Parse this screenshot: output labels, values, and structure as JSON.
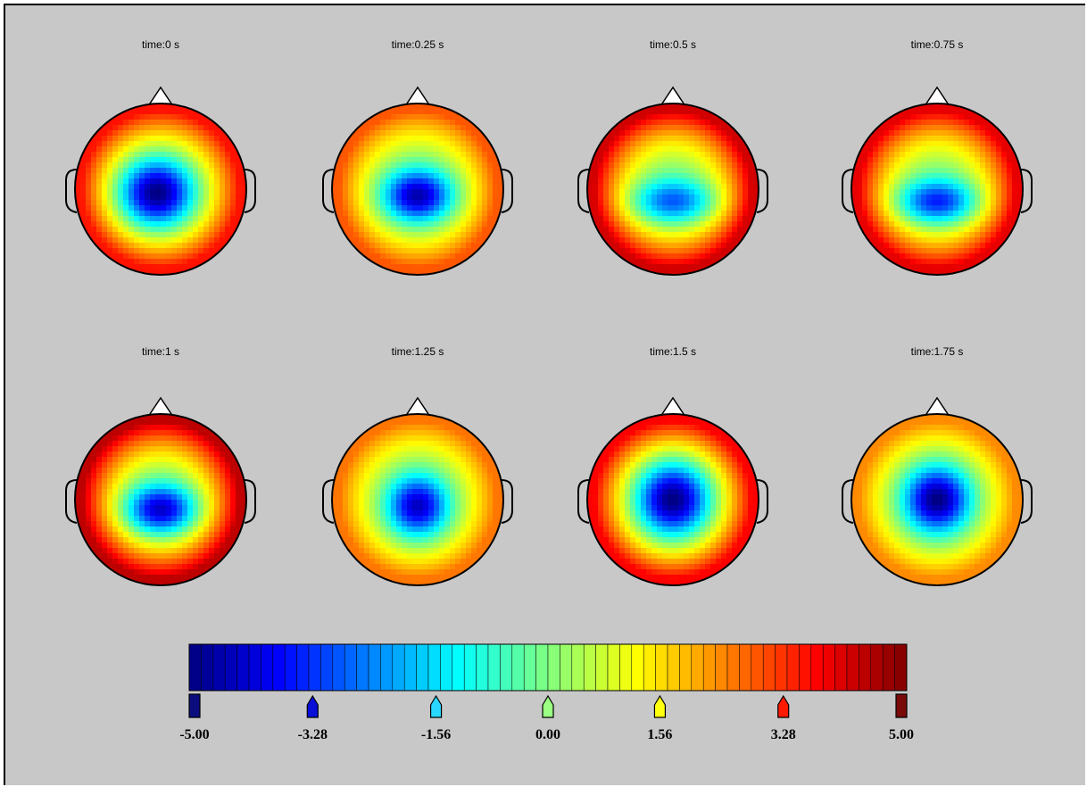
{
  "chart_data": {
    "type": "heatmap",
    "description_type": "scalp-topography",
    "panels": [
      {
        "title": "time:0 s",
        "pattern": {
          "center": [
            -0.05,
            0.05
          ],
          "spread": [
            0.42,
            0.38
          ],
          "amp": -5.0,
          "rim": 3.6
        }
      },
      {
        "title": "time:0.25 s",
        "pattern": {
          "center": [
            0.0,
            0.08
          ],
          "spread": [
            0.4,
            0.3
          ],
          "amp": -4.6,
          "rim": 2.9
        }
      },
      {
        "title": "time:0.5 s",
        "pattern": {
          "center": [
            0.0,
            0.15
          ],
          "spread": [
            0.48,
            0.25
          ],
          "amp": -3.0,
          "rim": 4.2
        }
      },
      {
        "title": "time:0.75 s",
        "pattern": {
          "center": [
            0.0,
            0.15
          ],
          "spread": [
            0.45,
            0.25
          ],
          "amp": -3.6,
          "rim": 4.0
        }
      },
      {
        "title": "time:1 s",
        "pattern": {
          "center": [
            0.0,
            0.12
          ],
          "spread": [
            0.4,
            0.28
          ],
          "amp": -4.4,
          "rim": 4.4
        }
      },
      {
        "title": "time:1.25 s",
        "pattern": {
          "center": [
            0.0,
            0.08
          ],
          "spread": [
            0.35,
            0.35
          ],
          "amp": -4.4,
          "rim": 2.6
        }
      },
      {
        "title": "time:1.5 s",
        "pattern": {
          "center": [
            0.0,
            0.0
          ],
          "spread": [
            0.42,
            0.42
          ],
          "amp": -5.0,
          "rim": 3.8
        }
      },
      {
        "title": "time:1.75 s",
        "pattern": {
          "center": [
            0.0,
            0.0
          ],
          "spread": [
            0.38,
            0.38
          ],
          "amp": -5.0,
          "rim": 2.4
        }
      }
    ],
    "colorbar": {
      "colormap": "jet",
      "range": [
        -5.0,
        5.0
      ],
      "ticks": [
        -5.0,
        -3.28,
        -1.56,
        0.0,
        1.56,
        3.28,
        5.0
      ],
      "tick_labels": [
        "-5.00",
        "-3.28",
        "-1.56",
        "0.00",
        "1.56",
        "3.28",
        "5.00"
      ],
      "tick_colors": [
        "#0b0d7f",
        "#0a0fd8",
        "#2ad8ff",
        "#9bff84",
        "#ffff10",
        "#ff1a00",
        "#7a0a0a"
      ]
    },
    "grid": false
  }
}
